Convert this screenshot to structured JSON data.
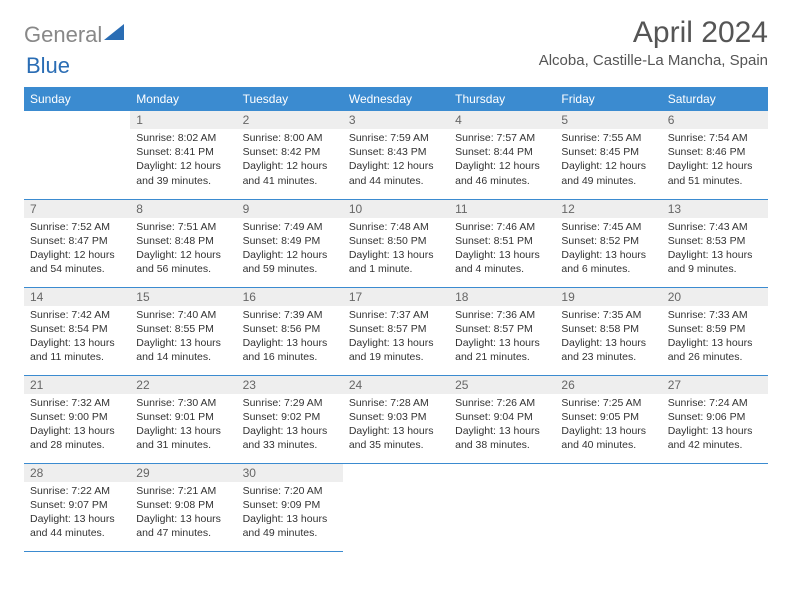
{
  "logo": {
    "text1": "General",
    "text2": "Blue"
  },
  "title": "April 2024",
  "location": "Alcoba, Castille-La Mancha, Spain",
  "day_headers": [
    "Sunday",
    "Monday",
    "Tuesday",
    "Wednesday",
    "Thursday",
    "Friday",
    "Saturday"
  ],
  "colors": {
    "header_bg": "#3b8bd0",
    "header_text": "#ffffff",
    "daynum_bg": "#eeeeee",
    "border": "#3b8bd0",
    "logo_gray": "#888888",
    "logo_blue": "#2a6db4"
  },
  "weeks": [
    [
      null,
      {
        "n": "1",
        "sr": "8:02 AM",
        "ss": "8:41 PM",
        "dl": "12 hours and 39 minutes."
      },
      {
        "n": "2",
        "sr": "8:00 AM",
        "ss": "8:42 PM",
        "dl": "12 hours and 41 minutes."
      },
      {
        "n": "3",
        "sr": "7:59 AM",
        "ss": "8:43 PM",
        "dl": "12 hours and 44 minutes."
      },
      {
        "n": "4",
        "sr": "7:57 AM",
        "ss": "8:44 PM",
        "dl": "12 hours and 46 minutes."
      },
      {
        "n": "5",
        "sr": "7:55 AM",
        "ss": "8:45 PM",
        "dl": "12 hours and 49 minutes."
      },
      {
        "n": "6",
        "sr": "7:54 AM",
        "ss": "8:46 PM",
        "dl": "12 hours and 51 minutes."
      }
    ],
    [
      {
        "n": "7",
        "sr": "7:52 AM",
        "ss": "8:47 PM",
        "dl": "12 hours and 54 minutes."
      },
      {
        "n": "8",
        "sr": "7:51 AM",
        "ss": "8:48 PM",
        "dl": "12 hours and 56 minutes."
      },
      {
        "n": "9",
        "sr": "7:49 AM",
        "ss": "8:49 PM",
        "dl": "12 hours and 59 minutes."
      },
      {
        "n": "10",
        "sr": "7:48 AM",
        "ss": "8:50 PM",
        "dl": "13 hours and 1 minute."
      },
      {
        "n": "11",
        "sr": "7:46 AM",
        "ss": "8:51 PM",
        "dl": "13 hours and 4 minutes."
      },
      {
        "n": "12",
        "sr": "7:45 AM",
        "ss": "8:52 PM",
        "dl": "13 hours and 6 minutes."
      },
      {
        "n": "13",
        "sr": "7:43 AM",
        "ss": "8:53 PM",
        "dl": "13 hours and 9 minutes."
      }
    ],
    [
      {
        "n": "14",
        "sr": "7:42 AM",
        "ss": "8:54 PM",
        "dl": "13 hours and 11 minutes."
      },
      {
        "n": "15",
        "sr": "7:40 AM",
        "ss": "8:55 PM",
        "dl": "13 hours and 14 minutes."
      },
      {
        "n": "16",
        "sr": "7:39 AM",
        "ss": "8:56 PM",
        "dl": "13 hours and 16 minutes."
      },
      {
        "n": "17",
        "sr": "7:37 AM",
        "ss": "8:57 PM",
        "dl": "13 hours and 19 minutes."
      },
      {
        "n": "18",
        "sr": "7:36 AM",
        "ss": "8:57 PM",
        "dl": "13 hours and 21 minutes."
      },
      {
        "n": "19",
        "sr": "7:35 AM",
        "ss": "8:58 PM",
        "dl": "13 hours and 23 minutes."
      },
      {
        "n": "20",
        "sr": "7:33 AM",
        "ss": "8:59 PM",
        "dl": "13 hours and 26 minutes."
      }
    ],
    [
      {
        "n": "21",
        "sr": "7:32 AM",
        "ss": "9:00 PM",
        "dl": "13 hours and 28 minutes."
      },
      {
        "n": "22",
        "sr": "7:30 AM",
        "ss": "9:01 PM",
        "dl": "13 hours and 31 minutes."
      },
      {
        "n": "23",
        "sr": "7:29 AM",
        "ss": "9:02 PM",
        "dl": "13 hours and 33 minutes."
      },
      {
        "n": "24",
        "sr": "7:28 AM",
        "ss": "9:03 PM",
        "dl": "13 hours and 35 minutes."
      },
      {
        "n": "25",
        "sr": "7:26 AM",
        "ss": "9:04 PM",
        "dl": "13 hours and 38 minutes."
      },
      {
        "n": "26",
        "sr": "7:25 AM",
        "ss": "9:05 PM",
        "dl": "13 hours and 40 minutes."
      },
      {
        "n": "27",
        "sr": "7:24 AM",
        "ss": "9:06 PM",
        "dl": "13 hours and 42 minutes."
      }
    ],
    [
      {
        "n": "28",
        "sr": "7:22 AM",
        "ss": "9:07 PM",
        "dl": "13 hours and 44 minutes."
      },
      {
        "n": "29",
        "sr": "7:21 AM",
        "ss": "9:08 PM",
        "dl": "13 hours and 47 minutes."
      },
      {
        "n": "30",
        "sr": "7:20 AM",
        "ss": "9:09 PM",
        "dl": "13 hours and 49 minutes."
      },
      null,
      null,
      null,
      null
    ]
  ],
  "labels": {
    "sunrise": "Sunrise: ",
    "sunset": "Sunset: ",
    "daylight": "Daylight: "
  }
}
